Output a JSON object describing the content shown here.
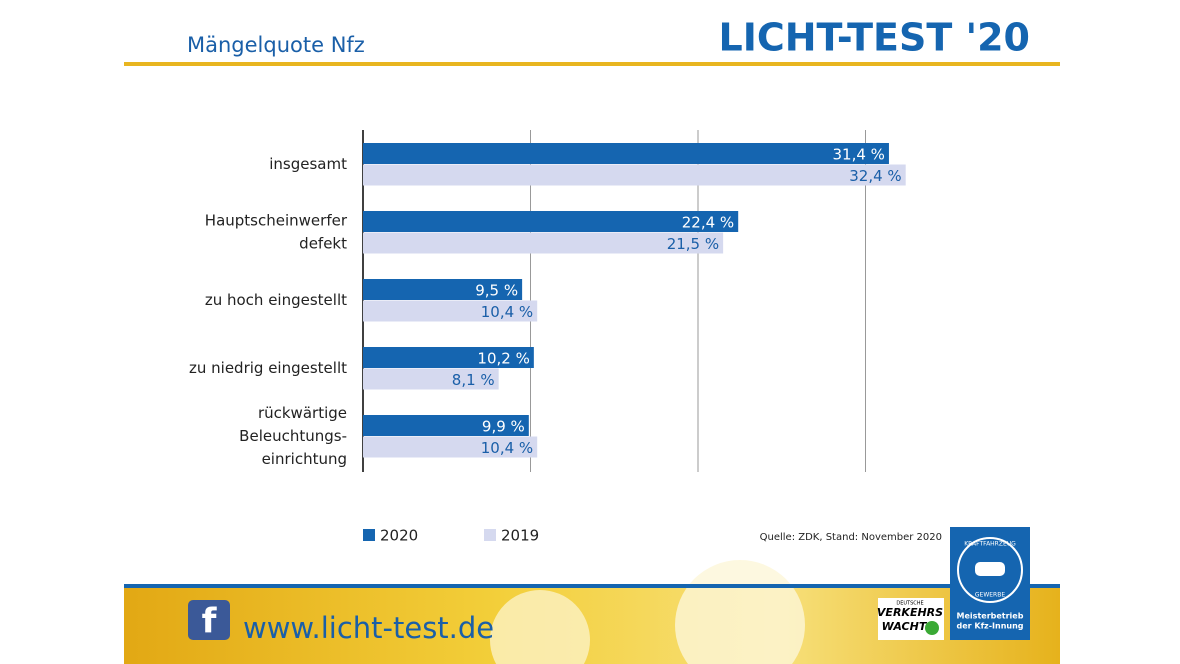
{
  "header": {
    "subtitle": "Mängelquote Nfz",
    "brand": "LICHT-TEST '20"
  },
  "chart_data": {
    "type": "bar",
    "orientation": "horizontal",
    "categories": [
      [
        "insgesamt"
      ],
      [
        "Hauptscheinwerfer",
        "defekt"
      ],
      [
        "zu hoch eingestellt"
      ],
      [
        "zu niedrig eingestellt"
      ],
      [
        "rückwärtige",
        "Beleuchtungs-",
        "einrichtung"
      ]
    ],
    "series": [
      {
        "name": "2020",
        "color": "#1565b0",
        "values": [
          31.4,
          22.4,
          9.5,
          10.2,
          9.9
        ],
        "value_labels": [
          "31,4 %",
          "22,4 %",
          "9,5 %",
          "10,2 %",
          "9,9 %"
        ]
      },
      {
        "name": "2019",
        "color": "#d5d9ef",
        "values": [
          32.4,
          21.5,
          10.4,
          8.1,
          10.4
        ],
        "value_labels": [
          "32,4 %",
          "21,5 %",
          "10,4 %",
          "8,1 %",
          "10,4 %"
        ]
      }
    ],
    "xlim": [
      0,
      35
    ],
    "xticks": [
      0,
      10,
      20,
      30
    ],
    "grid": true,
    "legend": "bottom-left",
    "source": "Quelle: ZDK, Stand: November 2020"
  },
  "footer": {
    "url": "www.licht-test.de",
    "vw_small": "DEUTSCHE",
    "vw_1": "VERKEHRS",
    "vw_2": "WACHT",
    "badge_top": "KRAFTFAHRZEUG",
    "badge_bottom": "GEWERBE",
    "badge_line1": "Meisterbetrieb",
    "badge_line2": "der Kfz-Innung"
  }
}
